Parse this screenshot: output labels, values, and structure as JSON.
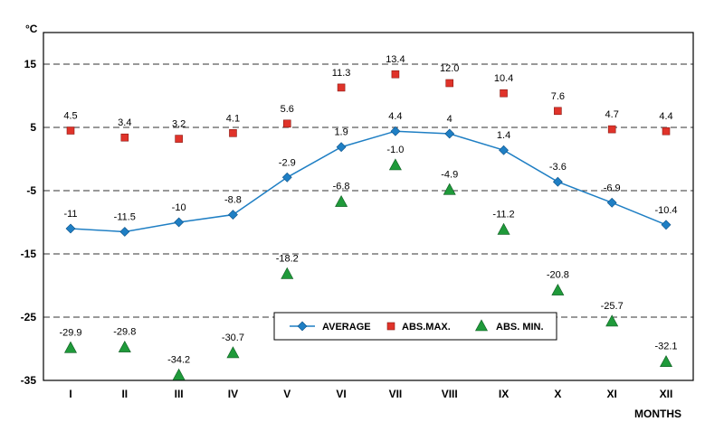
{
  "chart_data": {
    "type": "line",
    "title": "",
    "ylabel": "°C",
    "xlabel": "MONTHS",
    "categories": [
      "I",
      "II",
      "III",
      "IV",
      "V",
      "VI",
      "VII",
      "VIII",
      "IX",
      "X",
      "XI",
      "XII"
    ],
    "ylim": [
      -35,
      20
    ],
    "yticks": [
      "15",
      "5",
      "-5",
      "-15",
      "-25",
      "-35"
    ],
    "grid": "horizontal-dashed",
    "legend_position": "bottom-center",
    "series": [
      {
        "name": "AVERAGE",
        "kind": "line",
        "marker": "diamond",
        "color": "#1f7fc4",
        "values": [
          -11,
          -11.5,
          -10,
          -8.8,
          -2.9,
          1.9,
          4.4,
          4,
          1.4,
          -3.6,
          -6.9,
          -10.4
        ],
        "labels": [
          "-11",
          "-11.5",
          "-10",
          "-8.8",
          "-2.9",
          "1.9",
          "4.4",
          "4",
          "1.4",
          "-3.6",
          "-6.9",
          "-10.4"
        ]
      },
      {
        "name": "ABS.MAX.",
        "kind": "scatter",
        "marker": "square",
        "color": "#e0332a",
        "values": [
          4.5,
          3.4,
          3.2,
          4.1,
          5.6,
          11.3,
          13.4,
          12.0,
          10.4,
          7.6,
          4.7,
          4.4
        ],
        "labels": [
          "4.5",
          "3.4",
          "3.2",
          "4.1",
          "5.6",
          "11.3",
          "13.4",
          "12.0",
          "10.4",
          "7.6",
          "4.7",
          "4.4"
        ]
      },
      {
        "name": "ABS. MIN.",
        "kind": "scatter",
        "marker": "triangle",
        "color": "#1f9a3a",
        "values": [
          -29.9,
          -29.8,
          -34.2,
          -30.7,
          -18.2,
          -6.8,
          -1.0,
          -4.9,
          -11.2,
          -20.8,
          -25.7,
          -32.1
        ],
        "labels": [
          "-29.9",
          "-29.8",
          "-34.2",
          "-30.7",
          "-18.2",
          "-6.8",
          "-1.0",
          "-4.9",
          "-11.2",
          "-20.8",
          "-25.7",
          "-32.1"
        ]
      }
    ]
  }
}
